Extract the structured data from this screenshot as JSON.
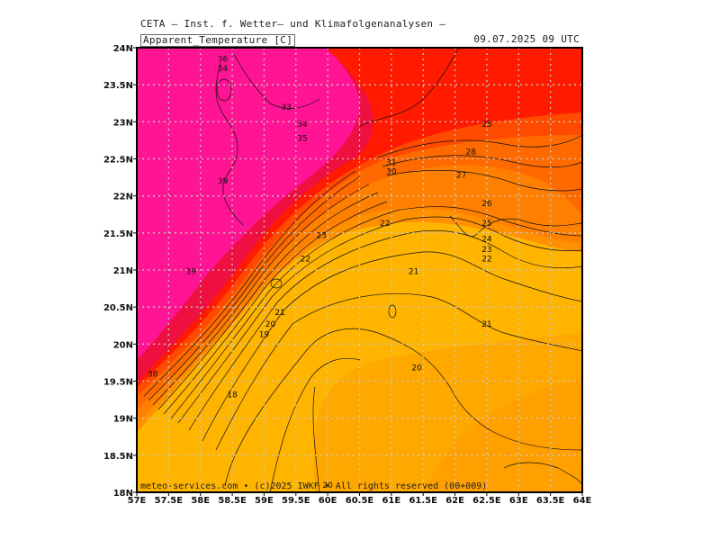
{
  "header": {
    "org_line": "CETA – Inst. f. Wetter– und Klimafolgenanalysen –",
    "parameter": "Apparent_Temperature [C]",
    "valid_time": "09.07.2025 09 UTC"
  },
  "footer": {
    "credit": "meteo-services.com • (c)2025 IWKF • All rights reserved (00+009)"
  },
  "map": {
    "lon_range": [
      57,
      64
    ],
    "lat_range": [
      18,
      24
    ],
    "x_ticks": [
      "57E",
      "57.5E",
      "58E",
      "58.5E",
      "59E",
      "59.5E",
      "60E",
      "60.5E",
      "61E",
      "61.5E",
      "62E",
      "62.5E",
      "63E",
      "63.5E",
      "64E"
    ],
    "y_ticks": [
      "18N",
      "18.5N",
      "19N",
      "19.5N",
      "20N",
      "20.5N",
      "21N",
      "21.5N",
      "22N",
      "22.5N",
      "23N",
      "23.5N",
      "24N"
    ],
    "colors": {
      "magenta": "#ff1493",
      "crimson": "#ee1040",
      "red": "#ff1a00",
      "red_orange": "#ff4a00",
      "orange_dark": "#ff6a00",
      "orange": "#ff9000",
      "amber": "#ffa800",
      "gold": "#ffb400",
      "grid": "#c8c8c8"
    },
    "contour_labels": [
      {
        "text": "36",
        "lon": 58.35,
        "lat": 23.85
      },
      {
        "text": "34",
        "lon": 58.35,
        "lat": 23.72
      },
      {
        "text": "33",
        "lon": 59.35,
        "lat": 23.2
      },
      {
        "text": "34",
        "lon": 59.6,
        "lat": 22.97
      },
      {
        "text": "35",
        "lon": 59.6,
        "lat": 22.78
      },
      {
        "text": "39",
        "lon": 58.35,
        "lat": 22.2
      },
      {
        "text": "31",
        "lon": 61.0,
        "lat": 22.45
      },
      {
        "text": "30",
        "lon": 61.0,
        "lat": 22.33
      },
      {
        "text": "25",
        "lon": 62.5,
        "lat": 22.97
      },
      {
        "text": "28",
        "lon": 62.25,
        "lat": 22.6
      },
      {
        "text": "27",
        "lon": 62.1,
        "lat": 22.28
      },
      {
        "text": "26",
        "lon": 62.5,
        "lat": 21.9
      },
      {
        "text": "22",
        "lon": 60.9,
        "lat": 21.63
      },
      {
        "text": "25",
        "lon": 62.5,
        "lat": 21.63
      },
      {
        "text": "23",
        "lon": 59.9,
        "lat": 21.47
      },
      {
        "text": "24",
        "lon": 62.5,
        "lat": 21.42
      },
      {
        "text": "23",
        "lon": 62.5,
        "lat": 21.28
      },
      {
        "text": "22",
        "lon": 59.65,
        "lat": 21.15
      },
      {
        "text": "22",
        "lon": 62.5,
        "lat": 21.15
      },
      {
        "text": "39",
        "lon": 57.85,
        "lat": 20.98
      },
      {
        "text": "21",
        "lon": 61.35,
        "lat": 20.98
      },
      {
        "text": "21",
        "lon": 59.25,
        "lat": 20.43
      },
      {
        "text": "20",
        "lon": 59.1,
        "lat": 20.27
      },
      {
        "text": "21",
        "lon": 62.5,
        "lat": 20.27
      },
      {
        "text": "19",
        "lon": 59.0,
        "lat": 20.13
      },
      {
        "text": "20",
        "lon": 61.4,
        "lat": 19.68
      },
      {
        "text": "38",
        "lon": 57.25,
        "lat": 19.6
      },
      {
        "text": "18",
        "lon": 58.5,
        "lat": 19.32
      },
      {
        "text": "20",
        "lon": 60.0,
        "lat": 18.1
      }
    ]
  }
}
